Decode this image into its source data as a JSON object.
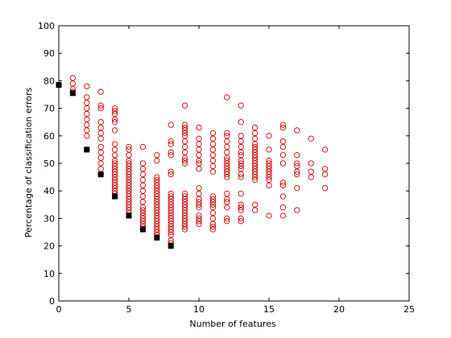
{
  "chart_data": {
    "type": "scatter",
    "title": "",
    "xlabel": "Number of features",
    "ylabel": "Percentage of classification errors",
    "xlim": [
      0,
      25
    ],
    "ylim": [
      0,
      100
    ],
    "xticks": [
      0,
      5,
      10,
      15,
      20,
      25
    ],
    "yticks": [
      0,
      10,
      20,
      30,
      40,
      50,
      60,
      70,
      80,
      90,
      100
    ],
    "grid": false,
    "legend": "none",
    "colors": {
      "circles": "#cc0000",
      "best": "#000000",
      "axis": "#000000",
      "background": "#ffffff"
    },
    "series": [
      {
        "marker": "open-circle",
        "color": "#cc0000",
        "points": [
          [
            0,
            78.5
          ],
          [
            1,
            81
          ],
          [
            1,
            79
          ],
          [
            1,
            77
          ],
          [
            1,
            76
          ],
          [
            2,
            78
          ],
          [
            2,
            74
          ],
          [
            2,
            72
          ],
          [
            2,
            70
          ],
          [
            2,
            68
          ],
          [
            2,
            66
          ],
          [
            2,
            64
          ],
          [
            2,
            62
          ],
          [
            2,
            60
          ],
          [
            2,
            55
          ],
          [
            3,
            76
          ],
          [
            3,
            71
          ],
          [
            3,
            70
          ],
          [
            3,
            65
          ],
          [
            3,
            63
          ],
          [
            3,
            61
          ],
          [
            3,
            59
          ],
          [
            3,
            56
          ],
          [
            3,
            54
          ],
          [
            3,
            52
          ],
          [
            3,
            50
          ],
          [
            3,
            48
          ],
          [
            3,
            46
          ],
          [
            4,
            70
          ],
          [
            4,
            69
          ],
          [
            4,
            68
          ],
          [
            4,
            66
          ],
          [
            4,
            65
          ],
          [
            4,
            62
          ],
          [
            4,
            57
          ],
          [
            4,
            55
          ],
          [
            4,
            53
          ],
          [
            4,
            51
          ],
          [
            4,
            50
          ],
          [
            4,
            49
          ],
          [
            4,
            48
          ],
          [
            4,
            47
          ],
          [
            4,
            46
          ],
          [
            4,
            45
          ],
          [
            4,
            44
          ],
          [
            4,
            43
          ],
          [
            4,
            42
          ],
          [
            4,
            41
          ],
          [
            4,
            40
          ],
          [
            4,
            39
          ],
          [
            4,
            38
          ],
          [
            5,
            56
          ],
          [
            5,
            55
          ],
          [
            5,
            53
          ],
          [
            5,
            51
          ],
          [
            5,
            50
          ],
          [
            5,
            49
          ],
          [
            5,
            48
          ],
          [
            5,
            47
          ],
          [
            5,
            46
          ],
          [
            5,
            45
          ],
          [
            5,
            44
          ],
          [
            5,
            43
          ],
          [
            5,
            42
          ],
          [
            5,
            41
          ],
          [
            5,
            40
          ],
          [
            5,
            39
          ],
          [
            5,
            38
          ],
          [
            5,
            37
          ],
          [
            5,
            36
          ],
          [
            5,
            35
          ],
          [
            5,
            34
          ],
          [
            5,
            33
          ],
          [
            5,
            32
          ],
          [
            6,
            56
          ],
          [
            6,
            50
          ],
          [
            6,
            48
          ],
          [
            6,
            46
          ],
          [
            6,
            44
          ],
          [
            6,
            42
          ],
          [
            6,
            40
          ],
          [
            6,
            38
          ],
          [
            6,
            36
          ],
          [
            6,
            34
          ],
          [
            6,
            33
          ],
          [
            6,
            32
          ],
          [
            6,
            31
          ],
          [
            6,
            30
          ],
          [
            6,
            29
          ],
          [
            6,
            28
          ],
          [
            6,
            27
          ],
          [
            6,
            26
          ],
          [
            7,
            53
          ],
          [
            7,
            51
          ],
          [
            7,
            45
          ],
          [
            7,
            44
          ],
          [
            7,
            43
          ],
          [
            7,
            42
          ],
          [
            7,
            41
          ],
          [
            7,
            40
          ],
          [
            7,
            39
          ],
          [
            7,
            38
          ],
          [
            7,
            37
          ],
          [
            7,
            36
          ],
          [
            7,
            35
          ],
          [
            7,
            34
          ],
          [
            7,
            33
          ],
          [
            7,
            32
          ],
          [
            7,
            31
          ],
          [
            7,
            30
          ],
          [
            7,
            29
          ],
          [
            7,
            28
          ],
          [
            7,
            27
          ],
          [
            7,
            26
          ],
          [
            7,
            25
          ],
          [
            7,
            24
          ],
          [
            8,
            64
          ],
          [
            8,
            58
          ],
          [
            8,
            57
          ],
          [
            8,
            54
          ],
          [
            8,
            53
          ],
          [
            8,
            47
          ],
          [
            8,
            46
          ],
          [
            8,
            39
          ],
          [
            8,
            38
          ],
          [
            8,
            37
          ],
          [
            8,
            36
          ],
          [
            8,
            35
          ],
          [
            8,
            34
          ],
          [
            8,
            33
          ],
          [
            8,
            32
          ],
          [
            8,
            31
          ],
          [
            8,
            30
          ],
          [
            8,
            29
          ],
          [
            8,
            28
          ],
          [
            8,
            27
          ],
          [
            8,
            26
          ],
          [
            8,
            25
          ],
          [
            8,
            24
          ],
          [
            8,
            22
          ],
          [
            8,
            21
          ],
          [
            9,
            71
          ],
          [
            9,
            64
          ],
          [
            9,
            63
          ],
          [
            9,
            62
          ],
          [
            9,
            61
          ],
          [
            9,
            60
          ],
          [
            9,
            58
          ],
          [
            9,
            56
          ],
          [
            9,
            54
          ],
          [
            9,
            52
          ],
          [
            9,
            51
          ],
          [
            9,
            50
          ],
          [
            9,
            39
          ],
          [
            9,
            38
          ],
          [
            9,
            37
          ],
          [
            9,
            36
          ],
          [
            9,
            35
          ],
          [
            9,
            34
          ],
          [
            9,
            33
          ],
          [
            9,
            32
          ],
          [
            9,
            31
          ],
          [
            9,
            30
          ],
          [
            9,
            29
          ],
          [
            9,
            28
          ],
          [
            9,
            27
          ],
          [
            9,
            26
          ],
          [
            10,
            63
          ],
          [
            10,
            59
          ],
          [
            10,
            57
          ],
          [
            10,
            55
          ],
          [
            10,
            53
          ],
          [
            10,
            51
          ],
          [
            10,
            50
          ],
          [
            10,
            48
          ],
          [
            10,
            41
          ],
          [
            10,
            39
          ],
          [
            10,
            37
          ],
          [
            10,
            36
          ],
          [
            10,
            35
          ],
          [
            10,
            34
          ],
          [
            10,
            31
          ],
          [
            10,
            30
          ],
          [
            10,
            29
          ],
          [
            10,
            28
          ],
          [
            11,
            61
          ],
          [
            11,
            59
          ],
          [
            11,
            57
          ],
          [
            11,
            55
          ],
          [
            11,
            53
          ],
          [
            11,
            51
          ],
          [
            11,
            49
          ],
          [
            11,
            47
          ],
          [
            11,
            38
          ],
          [
            11,
            37
          ],
          [
            11,
            36
          ],
          [
            11,
            35
          ],
          [
            11,
            34
          ],
          [
            11,
            32
          ],
          [
            11,
            30
          ],
          [
            11,
            28
          ],
          [
            11,
            27
          ],
          [
            11,
            26
          ],
          [
            12,
            74
          ],
          [
            12,
            61
          ],
          [
            12,
            60
          ],
          [
            12,
            58
          ],
          [
            12,
            56
          ],
          [
            12,
            54
          ],
          [
            12,
            52
          ],
          [
            12,
            51
          ],
          [
            12,
            50
          ],
          [
            12,
            49
          ],
          [
            12,
            48
          ],
          [
            12,
            47
          ],
          [
            12,
            46
          ],
          [
            12,
            45
          ],
          [
            12,
            39
          ],
          [
            12,
            37
          ],
          [
            12,
            36
          ],
          [
            12,
            34
          ],
          [
            12,
            30
          ],
          [
            12,
            29
          ],
          [
            13,
            71
          ],
          [
            13,
            65
          ],
          [
            13,
            60
          ],
          [
            13,
            58
          ],
          [
            13,
            56
          ],
          [
            13,
            54
          ],
          [
            13,
            53
          ],
          [
            13,
            51
          ],
          [
            13,
            50
          ],
          [
            13,
            49
          ],
          [
            13,
            48
          ],
          [
            13,
            46
          ],
          [
            13,
            45
          ],
          [
            13,
            39
          ],
          [
            13,
            35
          ],
          [
            13,
            34
          ],
          [
            13,
            33
          ],
          [
            13,
            30
          ],
          [
            13,
            29
          ],
          [
            14,
            63
          ],
          [
            14,
            61
          ],
          [
            14,
            59
          ],
          [
            14,
            57
          ],
          [
            14,
            56
          ],
          [
            14,
            55
          ],
          [
            14,
            54
          ],
          [
            14,
            53
          ],
          [
            14,
            52
          ],
          [
            14,
            51
          ],
          [
            14,
            50
          ],
          [
            14,
            49
          ],
          [
            14,
            48
          ],
          [
            14,
            47
          ],
          [
            14,
            46
          ],
          [
            14,
            45
          ],
          [
            14,
            44
          ],
          [
            14,
            35
          ],
          [
            14,
            33
          ],
          [
            15,
            60
          ],
          [
            15,
            55
          ],
          [
            15,
            51
          ],
          [
            15,
            50
          ],
          [
            15,
            49
          ],
          [
            15,
            48
          ],
          [
            15,
            47
          ],
          [
            15,
            46
          ],
          [
            15,
            45
          ],
          [
            15,
            44
          ],
          [
            15,
            42
          ],
          [
            15,
            31
          ],
          [
            16,
            64
          ],
          [
            16,
            63
          ],
          [
            16,
            58
          ],
          [
            16,
            56
          ],
          [
            16,
            53
          ],
          [
            16,
            50
          ],
          [
            16,
            43
          ],
          [
            16,
            42
          ],
          [
            16,
            38
          ],
          [
            16,
            34
          ],
          [
            16,
            31
          ],
          [
            17,
            62
          ],
          [
            17,
            53
          ],
          [
            17,
            50
          ],
          [
            17,
            49
          ],
          [
            17,
            47
          ],
          [
            17,
            46
          ],
          [
            17,
            41
          ],
          [
            17,
            33
          ],
          [
            18,
            59
          ],
          [
            18,
            50
          ],
          [
            18,
            47
          ],
          [
            18,
            45
          ],
          [
            19,
            55
          ],
          [
            19,
            48
          ],
          [
            19,
            46
          ],
          [
            19,
            41
          ]
        ]
      },
      {
        "marker": "filled-square",
        "color": "#000000",
        "points": [
          [
            0,
            78.5
          ],
          [
            1,
            75.5
          ],
          [
            2,
            55
          ],
          [
            3,
            46
          ],
          [
            4,
            38
          ],
          [
            5,
            31
          ],
          [
            6,
            26
          ],
          [
            7,
            23
          ],
          [
            8,
            20
          ]
        ]
      }
    ]
  }
}
